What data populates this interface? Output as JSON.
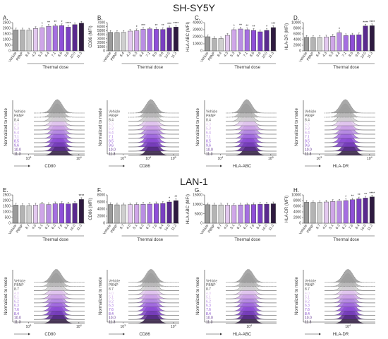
{
  "figure": {
    "section_titles": [
      "SH-SY5Y",
      "LAN-1"
    ],
    "hist_mode_label": "Normalized to mode",
    "doses": [
      "Vehicle",
      "PBNP",
      "8.4",
      "4.3",
      "5.3",
      "6.4",
      "7.1",
      "8.5",
      "9.6",
      "10.0",
      "11.3"
    ],
    "doses_lan1": [
      "Vehicle",
      "PBNP",
      "8.7",
      "4.0",
      "5.1",
      "6.2",
      "6.3",
      "7.6",
      "8.4",
      "10.0",
      "11.3"
    ],
    "colors": [
      "#9a9a9a",
      "#b4b4b4",
      "#cfcfcf",
      "#e3c9ef",
      "#cfa6e8",
      "#b98ee3",
      "#a56fe0",
      "#8f4fd8",
      "#7a3fc2",
      "#5a2a8e",
      "#2e1a40"
    ]
  },
  "chart_data": [
    {
      "type": "bar",
      "panel_label": "A.",
      "ylabel": "CD80 (MFI)",
      "xlabel": "Thermal dose",
      "categories": [
        "Vehicle",
        "PBNP",
        "8.4",
        "4.3",
        "5.3",
        "6.4",
        "7.1",
        "8.5",
        "9.6",
        "10.0",
        "11.3"
      ],
      "values": [
        1850,
        1850,
        1840,
        1980,
        2050,
        2180,
        2210,
        2230,
        2100,
        2320,
        2450
      ],
      "yticks": [
        "0",
        "500",
        "1000",
        "1500",
        "2000",
        "2500"
      ],
      "ylim": [
        0,
        2500
      ],
      "stars": [
        "",
        "",
        "",
        "",
        "*",
        "**",
        "**",
        "*",
        "****",
        "",
        ""
      ],
      "hist_xlabel": "CD80",
      "hist_xticks": [
        "10^3",
        "10^4"
      ]
    },
    {
      "type": "bar",
      "panel_label": "B.",
      "ylabel": "CD86 (MFI)",
      "xlabel": "Thermal dose",
      "categories": [
        "Vehicle",
        "PBNP",
        "8.4",
        "4.3",
        "5.3",
        "6.4",
        "7.1",
        "8.5",
        "9.6",
        "10.0",
        "11.3"
      ],
      "values": [
        4600,
        4550,
        4600,
        4900,
        5000,
        5350,
        5450,
        5350,
        5300,
        5700,
        5900
      ],
      "yticks": [
        "0",
        "1000",
        "2000",
        "3000",
        "4000",
        "5000",
        "6000",
        "7000"
      ],
      "ylim": [
        0,
        7000
      ],
      "stars": [
        "",
        "",
        "",
        "",
        "*",
        "***",
        "",
        "**",
        "**",
        "***",
        "****"
      ],
      "hist_xlabel": "CD86",
      "hist_xticks": [
        "10^3",
        "10^4",
        "10^5"
      ]
    },
    {
      "type": "bar",
      "panel_label": "C.",
      "ylabel": "HLA-ABC (MFI)",
      "xlabel": "Thermal dose",
      "categories": [
        "Vehicle",
        "PBNP",
        "8.4",
        "4.3",
        "5.3",
        "6.4",
        "7.1",
        "8.5",
        "9.6",
        "10.0",
        "11.3"
      ],
      "values": [
        20000,
        17500,
        17500,
        22000,
        30000,
        31000,
        30000,
        29000,
        27000,
        29000,
        33000
      ],
      "yticks": [
        "0",
        "10000",
        "20000",
        "30000",
        "40000"
      ],
      "ylim": [
        0,
        40000
      ],
      "stars": [
        "",
        "",
        "",
        "",
        "*",
        "**",
        "**",
        "**",
        "",
        "*",
        "***"
      ],
      "hist_xlabel": "HLA-ABC",
      "hist_xticks": [
        "10^4",
        "10^5"
      ]
    },
    {
      "type": "bar",
      "panel_label": "D.",
      "ylabel": "HLA-DR (MFI)",
      "xlabel": "Thermal dose",
      "categories": [
        "Vehicle",
        "PBNP",
        "8.4",
        "4.3",
        "5.3",
        "6.4",
        "7.1",
        "8.5",
        "9.6",
        "10.0",
        "11.3"
      ],
      "values": [
        4800,
        4700,
        4700,
        4900,
        5200,
        6400,
        5400,
        5600,
        5700,
        8800,
        8900
      ],
      "yticks": [
        "0",
        "2000",
        "4000",
        "6000",
        "8000",
        "10000"
      ],
      "ylim": [
        0,
        10000
      ],
      "stars": [
        "",
        "",
        "",
        "",
        "",
        "*",
        "",
        "",
        "",
        "****",
        "****"
      ],
      "hist_xlabel": "HLA-DR",
      "hist_xticks": [
        "10^3",
        "10^4"
      ]
    },
    {
      "type": "bar",
      "panel_label": "E.",
      "ylabel": "CD80 (MFI)",
      "xlabel": "Thermal dose",
      "categories": [
        "Vehicle",
        "PBNP",
        "8.7",
        "4.0",
        "5.1",
        "6.2",
        "6.3",
        "7.6",
        "8.4",
        "10.0",
        "11.3"
      ],
      "values": [
        1600,
        1560,
        1560,
        1600,
        1700,
        1650,
        1720,
        1740,
        1700,
        1750,
        2100
      ],
      "yticks": [
        "0",
        "500",
        "1000",
        "1500",
        "2000",
        "2500"
      ],
      "ylim": [
        0,
        2500
      ],
      "stars": [
        "",
        "",
        "",
        "",
        "",
        "",
        "",
        "",
        "",
        "",
        "****"
      ],
      "hist_xlabel": "CD80",
      "hist_xticks": [
        "10^3",
        "10^4"
      ]
    },
    {
      "type": "bar",
      "panel_label": "F.",
      "ylabel": "CD86 (MFI)",
      "xlabel": "Thermal dose",
      "categories": [
        "Vehicle",
        "PBNP",
        "8.7",
        "4.0",
        "5.1",
        "6.2",
        "6.3",
        "7.6",
        "8.4",
        "10.0",
        "11.3"
      ],
      "values": [
        5300,
        5200,
        5200,
        5250,
        5300,
        5350,
        5400,
        5500,
        5600,
        6000,
        6400
      ],
      "yticks": [
        "0",
        "2000",
        "4000",
        "6000",
        "8000"
      ],
      "ylim": [
        0,
        8000
      ],
      "stars": [
        "",
        "",
        "",
        "",
        "",
        "",
        "",
        "",
        "",
        "*",
        "**"
      ],
      "hist_xlabel": "CD86",
      "hist_xticks": [
        "10^3",
        "10^4"
      ]
    },
    {
      "type": "bar",
      "panel_label": "G.",
      "ylabel": "HLA-ABC (MFI)",
      "xlabel": "Thermal dose",
      "categories": [
        "Vehicle",
        "PBNP",
        "8.7",
        "4.0",
        "5.1",
        "6.2",
        "6.3",
        "7.6",
        "8.4",
        "10.0",
        "11.3"
      ],
      "values": [
        9800,
        9700,
        9700,
        9600,
        9500,
        9700,
        9800,
        9900,
        10000,
        10100,
        10300
      ],
      "yticks": [
        "0",
        "5000",
        "10000",
        "15000"
      ],
      "ylim": [
        0,
        15000
      ],
      "stars": [
        "",
        "",
        "",
        "",
        "",
        "",
        "",
        "",
        "",
        "",
        ""
      ],
      "hist_xlabel": "HLA-ABC",
      "hist_xticks": [
        "10^4"
      ]
    },
    {
      "type": "bar",
      "panel_label": "H.",
      "ylabel": "HLA-DR (MFI)",
      "xlabel": "Thermal dose",
      "categories": [
        "Vehicle",
        "PBNP",
        "8.7",
        "4.0",
        "5.1",
        "6.2",
        "6.3",
        "7.6",
        "8.4",
        "10.0",
        "11.3"
      ],
      "values": [
        7400,
        7300,
        7300,
        7500,
        7700,
        7800,
        8000,
        8300,
        8600,
        8900,
        9300
      ],
      "yticks": [
        "0",
        "2000",
        "4000",
        "6000",
        "8000",
        "10000"
      ],
      "ylim": [
        0,
        10000
      ],
      "stars": [
        "",
        "",
        "",
        "",
        "",
        "",
        "*",
        "**",
        "**",
        "**",
        "****"
      ],
      "hist_xlabel": "HLA-DR",
      "hist_xticks": [
        "10^4"
      ]
    }
  ]
}
